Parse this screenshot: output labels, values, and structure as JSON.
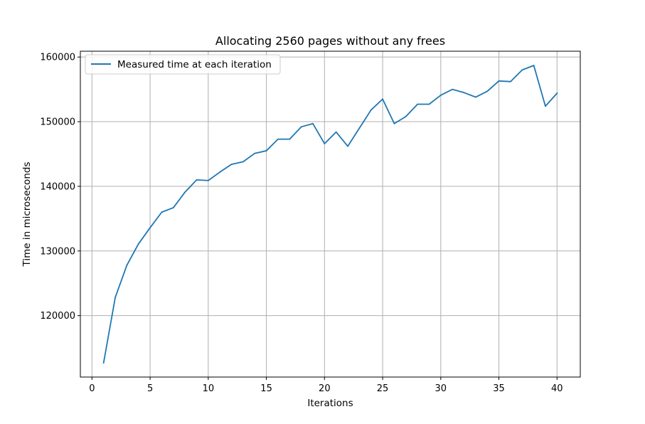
{
  "chart_data": {
    "type": "line",
    "title": "Allocating 2560 pages without any frees",
    "xlabel": "Iterations",
    "ylabel": "Time in microseconds",
    "xlim": [
      -1,
      42
    ],
    "ylim": [
      110500,
      160900
    ],
    "xticks": [
      0,
      5,
      10,
      15,
      20,
      25,
      30,
      35,
      40
    ],
    "yticks": [
      120000,
      130000,
      140000,
      150000,
      160000
    ],
    "grid": true,
    "legend_position": "top-left",
    "series": [
      {
        "name": "Measured time at each iteration",
        "color": "#1f77b4",
        "x": [
          1,
          2,
          3,
          4,
          5,
          6,
          7,
          8,
          9,
          10,
          11,
          12,
          13,
          14,
          15,
          16,
          17,
          18,
          19,
          20,
          21,
          22,
          23,
          24,
          25,
          26,
          27,
          28,
          29,
          30,
          31,
          32,
          33,
          34,
          35,
          36,
          37,
          38,
          39,
          40
        ],
        "y": [
          112700,
          122800,
          127800,
          131100,
          133600,
          136000,
          136700,
          139100,
          141000,
          140900,
          142200,
          143400,
          143800,
          145100,
          145500,
          147300,
          147300,
          149200,
          149700,
          146600,
          148400,
          146200,
          149000,
          151800,
          153500,
          149700,
          150800,
          152700,
          152700,
          154100,
          155000,
          154500,
          153800,
          154700,
          156300,
          156200,
          158000,
          158700,
          152400,
          154400
        ]
      }
    ]
  }
}
